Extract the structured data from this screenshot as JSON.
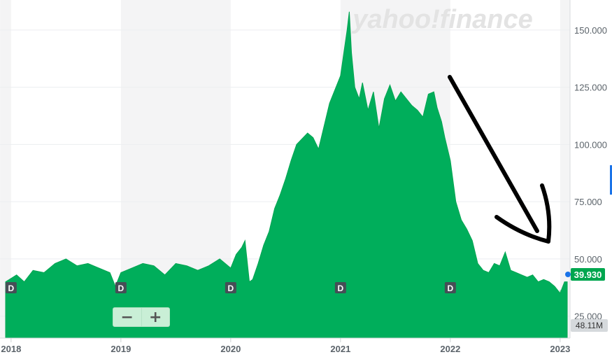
{
  "chart_data": {
    "type": "area",
    "watermark": "yahoo!finance",
    "x_ticks": [
      "2018",
      "2019",
      "2020",
      "2021",
      "2022",
      "2023"
    ],
    "y_ticks": [
      "150.000",
      "125.000",
      "100.000",
      "75.000",
      "50.000",
      "25.000"
    ],
    "ylim": [
      12,
      160
    ],
    "last_price": "39.930",
    "last_volume": "48.11M",
    "dividend_marker": "D",
    "dividend_dates": [
      2018.0,
      2019.0,
      2020.0,
      2021.0,
      2022.0
    ],
    "price_series": {
      "x": [
        2017.95,
        2018.05,
        2018.12,
        2018.2,
        2018.3,
        2018.4,
        2018.5,
        2018.6,
        2018.7,
        2018.8,
        2018.9,
        2018.95,
        2019.0,
        2019.1,
        2019.2,
        2019.3,
        2019.4,
        2019.5,
        2019.6,
        2019.7,
        2019.8,
        2019.9,
        2020.0,
        2020.05,
        2020.1,
        2020.13,
        2020.17,
        2020.2,
        2020.25,
        2020.3,
        2020.35,
        2020.4,
        2020.45,
        2020.5,
        2020.55,
        2020.6,
        2020.7,
        2020.75,
        2020.8,
        2020.85,
        2020.9,
        2020.95,
        2021.0,
        2021.03,
        2021.06,
        2021.08,
        2021.1,
        2021.13,
        2021.17,
        2021.2,
        2021.25,
        2021.3,
        2021.35,
        2021.4,
        2021.45,
        2021.5,
        2021.55,
        2021.6,
        2021.65,
        2021.7,
        2021.75,
        2021.8,
        2021.85,
        2021.88,
        2021.92,
        2021.95,
        2022.0,
        2022.05,
        2022.1,
        2022.15,
        2022.2,
        2022.25,
        2022.3,
        2022.35,
        2022.4,
        2022.45,
        2022.5,
        2022.55,
        2022.6,
        2022.65,
        2022.7,
        2022.75,
        2022.8,
        2022.85,
        2022.9,
        2022.95,
        2023.0,
        2023.04,
        2023.08
      ],
      "y": [
        40,
        43,
        40,
        45,
        44,
        48,
        50,
        47,
        48,
        46,
        44,
        38,
        44,
        46,
        48,
        47,
        43,
        48,
        47,
        45,
        47,
        50,
        46,
        52,
        55,
        58,
        40,
        41,
        48,
        56,
        62,
        72,
        78,
        85,
        93,
        100,
        105,
        103,
        98,
        108,
        118,
        124,
        130,
        140,
        150,
        158,
        140,
        125,
        120,
        127,
        115,
        123,
        107,
        120,
        126,
        119,
        123,
        120,
        117,
        115,
        112,
        122,
        123,
        116,
        110,
        103,
        93,
        75,
        67,
        63,
        58,
        48,
        45,
        44,
        48,
        47,
        53,
        45,
        44,
        43,
        42,
        43,
        40,
        41,
        40,
        38,
        35,
        40,
        40
      ]
    }
  }
}
